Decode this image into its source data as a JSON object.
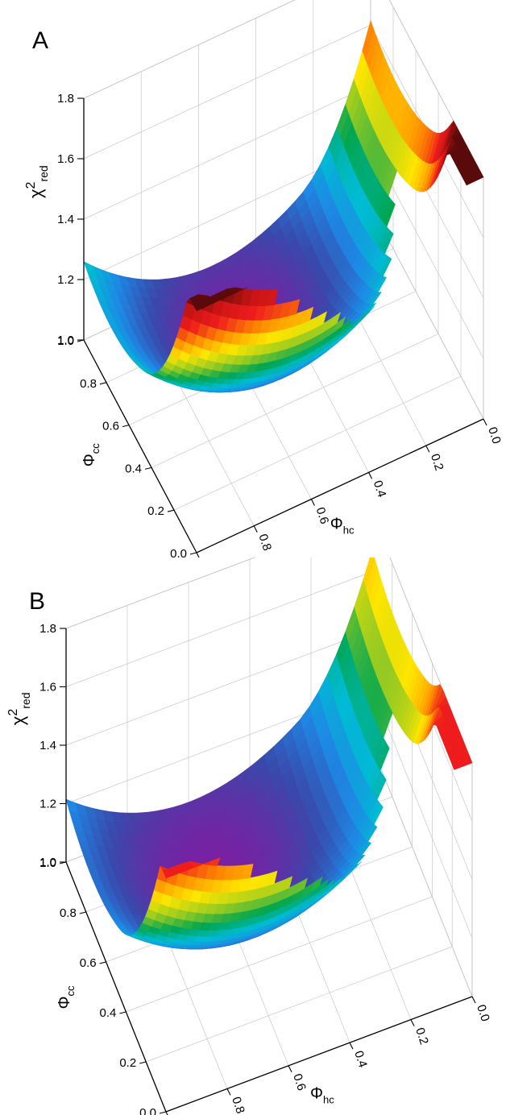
{
  "chart_data": [
    {
      "type": "surface",
      "panel_label": "A",
      "z_axis": {
        "label": "χ",
        "label_superscript": "2",
        "label_subscript": "red",
        "ticks": [
          "1.0",
          "1.2",
          "1.4",
          "1.6",
          "1.8"
        ],
        "range": [
          1.0,
          1.8
        ]
      },
      "y_axis": {
        "label": "Φ",
        "label_subscript": "cc",
        "ticks": [
          "0.0",
          "0.2",
          "0.4",
          "0.6",
          "0.8",
          "1.0"
        ],
        "range": [
          0.0,
          1.0
        ]
      },
      "x_axis": {
        "label": "Φ",
        "label_subscript": "hc",
        "ticks": [
          "1.0",
          "0.8",
          "0.6",
          "0.4",
          "0.2",
          "0.0"
        ],
        "range": [
          1.0,
          0.0
        ]
      },
      "minimum": {
        "phi_hc": 0.55,
        "phi_cc": 0.75,
        "chi2_red": 1.0
      },
      "colormap": [
        "#7b1fa2",
        "#3949ab",
        "#1e88e5",
        "#00bcd4",
        "#00a651",
        "#9ccc20",
        "#ffe600",
        "#ff8c00",
        "#ee1c1c",
        "#c81414",
        "#5a0a0a"
      ],
      "grid": true
    },
    {
      "type": "surface",
      "panel_label": "B",
      "z_axis": {
        "label": "χ",
        "label_superscript": "2",
        "label_subscript": "red",
        "ticks": [
          "1.0",
          "1.2",
          "1.4",
          "1.6",
          "1.8"
        ],
        "range": [
          1.0,
          1.8
        ]
      },
      "y_axis": {
        "label": "Φ",
        "label_subscript": "cc",
        "ticks": [
          "0.0",
          "0.2",
          "0.4",
          "0.6",
          "0.8",
          "1.0"
        ],
        "range": [
          0.0,
          1.0
        ]
      },
      "x_axis": {
        "label": "Φ",
        "label_subscript": "hc",
        "ticks": [
          "1.0",
          "0.8",
          "0.6",
          "0.4",
          "0.2",
          "0.0"
        ],
        "range": [
          1.0,
          0.0
        ]
      },
      "minimum": {
        "phi_hc": 0.6,
        "phi_cc": 0.75,
        "chi2_red": 1.0
      },
      "colormap": [
        "#7b1fa2",
        "#3949ab",
        "#1e88e5",
        "#00bcd4",
        "#00a651",
        "#9ccc20",
        "#ffe600",
        "#ff8c00",
        "#ee1c1c"
      ],
      "grid": true
    }
  ]
}
